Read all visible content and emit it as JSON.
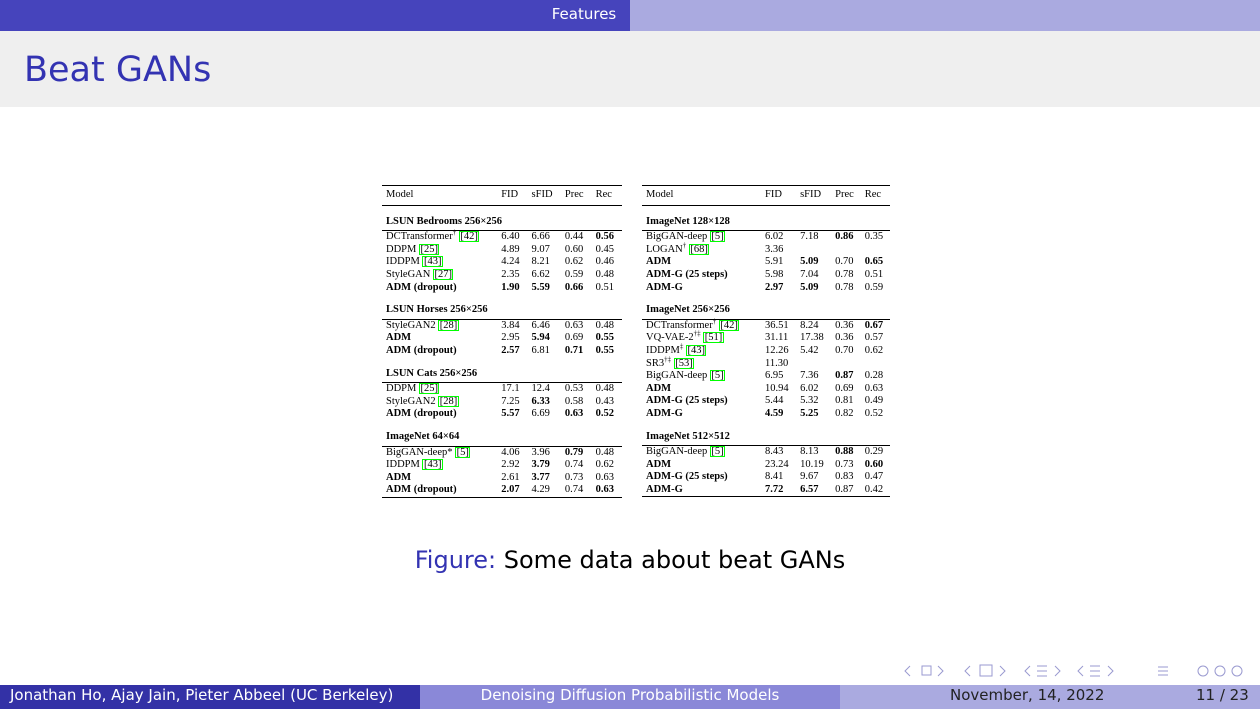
{
  "header": {
    "section": "Features"
  },
  "title": "Beat GANs",
  "tables": [
    {
      "columns": [
        "Model",
        "FID",
        "sFID",
        "Prec",
        "Rec"
      ],
      "sections": [
        {
          "title": "LSUN Bedrooms 256×256",
          "rows": [
            {
              "model": "DCTransformer",
              "sup": "†",
              "ref": "[42]",
              "values": [
                "6.40",
                "6.66",
                "0.44",
                "0.56"
              ],
              "bold": [
                4
              ]
            },
            {
              "model": "DDPM",
              "ref": "[25]",
              "values": [
                "4.89",
                "9.07",
                "0.60",
                "0.45"
              ]
            },
            {
              "model": "IDDPM",
              "ref": "[43]",
              "values": [
                "4.24",
                "8.21",
                "0.62",
                "0.46"
              ]
            },
            {
              "model": "StyleGAN",
              "ref": "[27]",
              "values": [
                "2.35",
                "6.62",
                "0.59",
                "0.48"
              ]
            },
            {
              "model": "ADM (dropout)",
              "values": [
                "1.90",
                "5.59",
                "0.66",
                "0.51"
              ],
              "bold": [
                0,
                1,
                2,
                3
              ]
            }
          ]
        },
        {
          "title": "LSUN Horses 256×256",
          "rows": [
            {
              "model": "StyleGAN2",
              "ref": "[28]",
              "values": [
                "3.84",
                "6.46",
                "0.63",
                "0.48"
              ]
            },
            {
              "model": "ADM",
              "values": [
                "2.95",
                "5.94",
                "0.69",
                "0.55"
              ],
              "bold": [
                0,
                2,
                4
              ]
            },
            {
              "model": "ADM (dropout)",
              "values": [
                "2.57",
                "6.81",
                "0.71",
                "0.55"
              ],
              "bold": [
                0,
                1,
                3,
                4
              ]
            }
          ]
        },
        {
          "title": "LSUN Cats 256×256",
          "rows": [
            {
              "model": "DDPM",
              "ref": "[25]",
              "values": [
                "17.1",
                "12.4",
                "0.53",
                "0.48"
              ]
            },
            {
              "model": "StyleGAN2",
              "ref": "[28]",
              "values": [
                "7.25",
                "6.33",
                "0.58",
                "0.43"
              ],
              "bold": [
                2
              ]
            },
            {
              "model": "ADM (dropout)",
              "values": [
                "5.57",
                "6.69",
                "0.63",
                "0.52"
              ],
              "bold": [
                0,
                1,
                3,
                4
              ]
            }
          ]
        },
        {
          "title": "ImageNet 64×64",
          "rows": [
            {
              "model": "BigGAN-deep*",
              "ref": "[5]",
              "values": [
                "4.06",
                "3.96",
                "0.79",
                "0.48"
              ],
              "bold": [
                3
              ]
            },
            {
              "model": "IDDPM",
              "ref": "[43]",
              "values": [
                "2.92",
                "3.79",
                "0.74",
                "0.62"
              ],
              "bold": [
                2
              ]
            },
            {
              "model": "ADM",
              "values": [
                "2.61",
                "3.77",
                "0.73",
                "0.63"
              ],
              "bold": [
                0,
                2
              ]
            },
            {
              "model": "ADM (dropout)",
              "values": [
                "2.07",
                "4.29",
                "0.74",
                "0.63"
              ],
              "bold": [
                0,
                1,
                4
              ]
            }
          ]
        }
      ]
    },
    {
      "columns": [
        "Model",
        "FID",
        "sFID",
        "Prec",
        "Rec"
      ],
      "sections": [
        {
          "title": "ImageNet 128×128",
          "rows": [
            {
              "model": "BigGAN-deep",
              "ref": "[5]",
              "values": [
                "6.02",
                "7.18",
                "0.86",
                "0.35"
              ],
              "bold": [
                3
              ]
            },
            {
              "model": "LOGAN",
              "sup": "†",
              "ref": "[68]",
              "values": [
                "3.36"
              ]
            },
            {
              "model": "ADM",
              "values": [
                "5.91",
                "5.09",
                "0.70",
                "0.65"
              ],
              "bold": [
                0,
                2,
                4
              ]
            },
            {
              "model": "ADM-G (25 steps)",
              "values": [
                "5.98",
                "7.04",
                "0.78",
                "0.51"
              ],
              "bold": [
                0
              ]
            },
            {
              "model": "ADM-G",
              "values": [
                "2.97",
                "5.09",
                "0.78",
                "0.59"
              ],
              "bold": [
                0,
                1,
                2
              ]
            }
          ]
        },
        {
          "title": "ImageNet 256×256",
          "rows": [
            {
              "model": "DCTransformer",
              "sup": "†",
              "ref": "[42]",
              "values": [
                "36.51",
                "8.24",
                "0.36",
                "0.67"
              ],
              "bold": [
                4
              ]
            },
            {
              "model": "VQ-VAE-2",
              "sup": "†‡",
              "ref": "[51]",
              "values": [
                "31.11",
                "17.38",
                "0.36",
                "0.57"
              ]
            },
            {
              "model": "IDDPM",
              "sup": "‡",
              "ref": "[43]",
              "values": [
                "12.26",
                "5.42",
                "0.70",
                "0.62"
              ]
            },
            {
              "model": "SR3",
              "sup": "†‡",
              "ref": "[53]",
              "values": [
                "11.30"
              ]
            },
            {
              "model": "BigGAN-deep",
              "ref": "[5]",
              "values": [
                "6.95",
                "7.36",
                "0.87",
                "0.28"
              ],
              "bold": [
                3
              ]
            },
            {
              "model": "ADM",
              "values": [
                "10.94",
                "6.02",
                "0.69",
                "0.63"
              ],
              "bold": [
                0
              ]
            },
            {
              "model": "ADM-G (25 steps)",
              "values": [
                "5.44",
                "5.32",
                "0.81",
                "0.49"
              ],
              "bold": [
                0
              ]
            },
            {
              "model": "ADM-G",
              "values": [
                "4.59",
                "5.25",
                "0.82",
                "0.52"
              ],
              "bold": [
                0,
                1,
                2
              ]
            }
          ]
        },
        {
          "title": "ImageNet 512×512",
          "rows": [
            {
              "model": "BigGAN-deep",
              "ref": "[5]",
              "values": [
                "8.43",
                "8.13",
                "0.88",
                "0.29"
              ],
              "bold": [
                3
              ]
            },
            {
              "model": "ADM",
              "values": [
                "23.24",
                "10.19",
                "0.73",
                "0.60"
              ],
              "bold": [
                0,
                4
              ]
            },
            {
              "model": "ADM-G (25 steps)",
              "values": [
                "8.41",
                "9.67",
                "0.83",
                "0.47"
              ],
              "bold": [
                0
              ]
            },
            {
              "model": "ADM-G",
              "values": [
                "7.72",
                "6.57",
                "0.87",
                "0.42"
              ],
              "bold": [
                0,
                1,
                2
              ]
            }
          ]
        }
      ]
    }
  ],
  "caption": {
    "label": "Figure:",
    "text": "Some data about beat GANs"
  },
  "footer": {
    "authors": "Jonathan Ho, Ajay Jain, Pieter Abbeel (UC Berkeley)",
    "talk": "Denoising Diffusion Probabilistic Models",
    "date": "November, 14, 2022",
    "page": "11 / 23"
  }
}
